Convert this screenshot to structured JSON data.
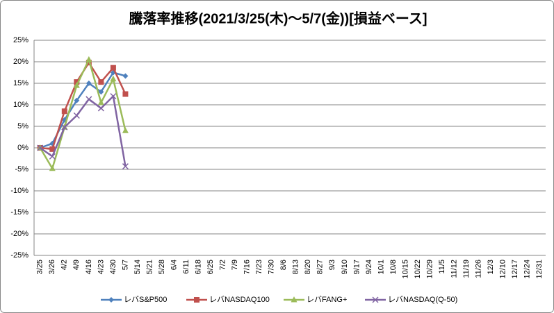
{
  "chart_data": {
    "type": "line",
    "title": "騰落率推移(2021/3/25(木)～5/7(金))[損益ベース]",
    "categories": [
      "3/25",
      "3/26",
      "4/2",
      "4/9",
      "4/16",
      "4/23",
      "4/30",
      "5/7",
      "5/14",
      "5/21",
      "5/28",
      "6/4",
      "6/11",
      "6/18",
      "6/25",
      "7/2",
      "7/9",
      "7/16",
      "7/23",
      "7/30",
      "8/6",
      "8/13",
      "8/20",
      "8/27",
      "9/3",
      "9/10",
      "9/17",
      "9/24",
      "10/1",
      "10/8",
      "10/15",
      "10/22",
      "10/29",
      "11/5",
      "11/12",
      "11/19",
      "11/26",
      "12/3",
      "12/10",
      "12/17",
      "12/24",
      "12/31"
    ],
    "series": [
      {
        "name": "レバS&P500",
        "color": "#4f81bd",
        "marker": "diamond",
        "values": [
          0,
          1,
          6.5,
          11,
          15,
          13,
          17.5,
          16.7,
          null,
          null,
          null,
          null,
          null,
          null,
          null,
          null,
          null,
          null,
          null,
          null,
          null,
          null,
          null,
          null,
          null,
          null,
          null,
          null,
          null,
          null,
          null,
          null,
          null,
          null,
          null,
          null,
          null,
          null,
          null,
          null,
          null,
          null
        ]
      },
      {
        "name": "レバNASDAQ100",
        "color": "#c0504d",
        "marker": "square",
        "values": [
          0,
          -0.3,
          8.5,
          15.3,
          19.8,
          15.3,
          18.6,
          12.5,
          null,
          null,
          null,
          null,
          null,
          null,
          null,
          null,
          null,
          null,
          null,
          null,
          null,
          null,
          null,
          null,
          null,
          null,
          null,
          null,
          null,
          null,
          null,
          null,
          null,
          null,
          null,
          null,
          null,
          null,
          null,
          null,
          null,
          null
        ]
      },
      {
        "name": "レバFANG+",
        "color": "#9bbb59",
        "marker": "triangle",
        "values": [
          0,
          -4.8,
          4.8,
          14.5,
          20.5,
          10.5,
          16,
          4,
          null,
          null,
          null,
          null,
          null,
          null,
          null,
          null,
          null,
          null,
          null,
          null,
          null,
          null,
          null,
          null,
          null,
          null,
          null,
          null,
          null,
          null,
          null,
          null,
          null,
          null,
          null,
          null,
          null,
          null,
          null,
          null,
          null,
          null
        ]
      },
      {
        "name": "レバNASDAQ(Q-50)",
        "color": "#8064a2",
        "marker": "x",
        "values": [
          0,
          -2,
          4.8,
          7.5,
          11.3,
          9.2,
          12,
          -4.3,
          null,
          null,
          null,
          null,
          null,
          null,
          null,
          null,
          null,
          null,
          null,
          null,
          null,
          null,
          null,
          null,
          null,
          null,
          null,
          null,
          null,
          null,
          null,
          null,
          null,
          null,
          null,
          null,
          null,
          null,
          null,
          null,
          null,
          null
        ]
      }
    ],
    "ylim": [
      -25,
      25
    ],
    "yticks": [
      {
        "value": -25,
        "label": "-25%"
      },
      {
        "value": -20,
        "label": "-20%"
      },
      {
        "value": -15,
        "label": "-15%"
      },
      {
        "value": -10,
        "label": "-10%"
      },
      {
        "value": -5,
        "label": "-5%"
      },
      {
        "value": 0,
        "label": "0%"
      },
      {
        "value": 5,
        "label": "5%"
      },
      {
        "value": 10,
        "label": "10%"
      },
      {
        "value": 15,
        "label": "15%"
      },
      {
        "value": 20,
        "label": "20%"
      },
      {
        "value": 25,
        "label": "25%"
      }
    ],
    "grid": true,
    "legend": "bottom"
  }
}
